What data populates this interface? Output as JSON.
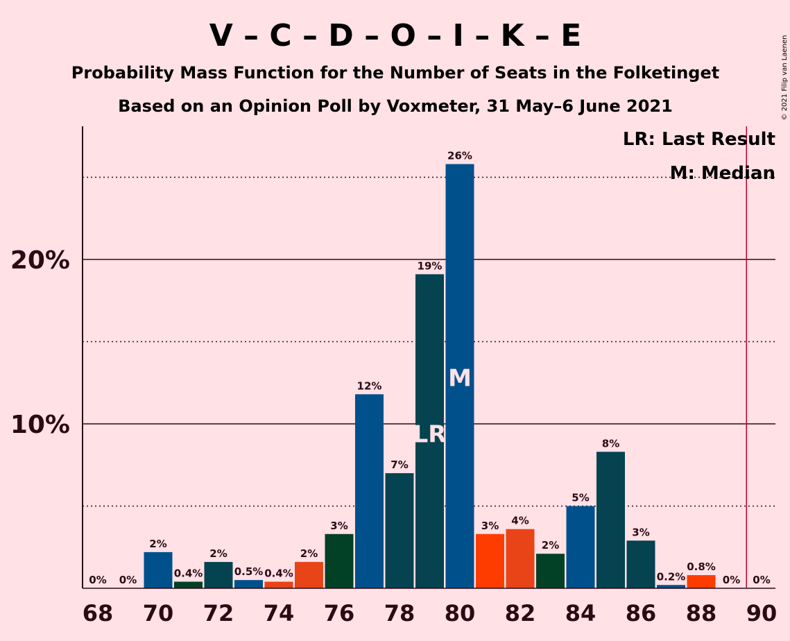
{
  "title": "V – C – D – O – I – K – E",
  "subtitle": "Probability Mass Function for the Number of Seats in the Folketinget",
  "subtitle2": "Based on an Opinion Poll by Voxmeter, 31 May–6 June 2021",
  "credit": "© 2021 Filip van Laenen",
  "legend": {
    "last_result": "LR: Last Result",
    "median": "M: Median"
  },
  "colors": {
    "background": "#FFE1E6",
    "text": "#2B0A14",
    "majority_line": "#C0002A",
    "party_colors": [
      "#00508C",
      "#04434F",
      "#034126",
      "#E84418",
      "#FF3C00"
    ]
  },
  "chart_data": {
    "type": "bar",
    "x": [
      68,
      69,
      70,
      71,
      72,
      73,
      74,
      75,
      76,
      77,
      78,
      79,
      80,
      81,
      82,
      83,
      84,
      85,
      86,
      87,
      88,
      89,
      90
    ],
    "values": [
      0,
      0,
      2.2,
      0.4,
      1.6,
      0.5,
      0.4,
      1.6,
      3.3,
      11.8,
      7.0,
      19.1,
      25.8,
      3.3,
      3.6,
      2.1,
      5.0,
      8.3,
      2.9,
      0.2,
      0.8,
      0,
      0
    ],
    "labels": [
      "0%",
      "0%",
      "2%",
      "0.4%",
      "2%",
      "0.5%",
      "0.4%",
      "2%",
      "3%",
      "12%",
      "7%",
      "19%",
      "26%",
      "3%",
      "4%",
      "2%",
      "5%",
      "8%",
      "3%",
      "0.2%",
      "0.8%",
      "0%",
      "0%"
    ],
    "bar_colors": [
      "#00508C",
      "#00508C",
      "#00508C",
      "#034126",
      "#04434F",
      "#00508C",
      "#E84418",
      "#E84418",
      "#034126",
      "#00508C",
      "#04434F",
      "#04434F",
      "#00508C",
      "#FF3C00",
      "#E84418",
      "#034126",
      "#00508C",
      "#04434F",
      "#04434F",
      "#00508C",
      "#FF3C00",
      "#00508C",
      "#00508C"
    ],
    "x_tick_labels": [
      "68",
      "70",
      "72",
      "74",
      "76",
      "78",
      "80",
      "82",
      "84",
      "86",
      "88",
      "90"
    ],
    "x_tick_values": [
      68,
      70,
      72,
      74,
      76,
      78,
      80,
      82,
      84,
      86,
      88,
      90
    ],
    "y_tick_labels": [
      "10%",
      "20%"
    ],
    "y_tick_values": [
      10,
      20
    ],
    "y_gridlines_solid": [
      10,
      20
    ],
    "y_gridlines_dotted": [
      5,
      15,
      25
    ],
    "ylim": [
      0,
      28
    ],
    "last_result_seat": 79,
    "last_result_marker": "LR",
    "median_seat": 80,
    "median_marker": "M",
    "majority_seat": 89.5,
    "legend_position": "top-right",
    "title": "V – C – D – O – I – K – E",
    "xlabel": "",
    "ylabel": ""
  }
}
